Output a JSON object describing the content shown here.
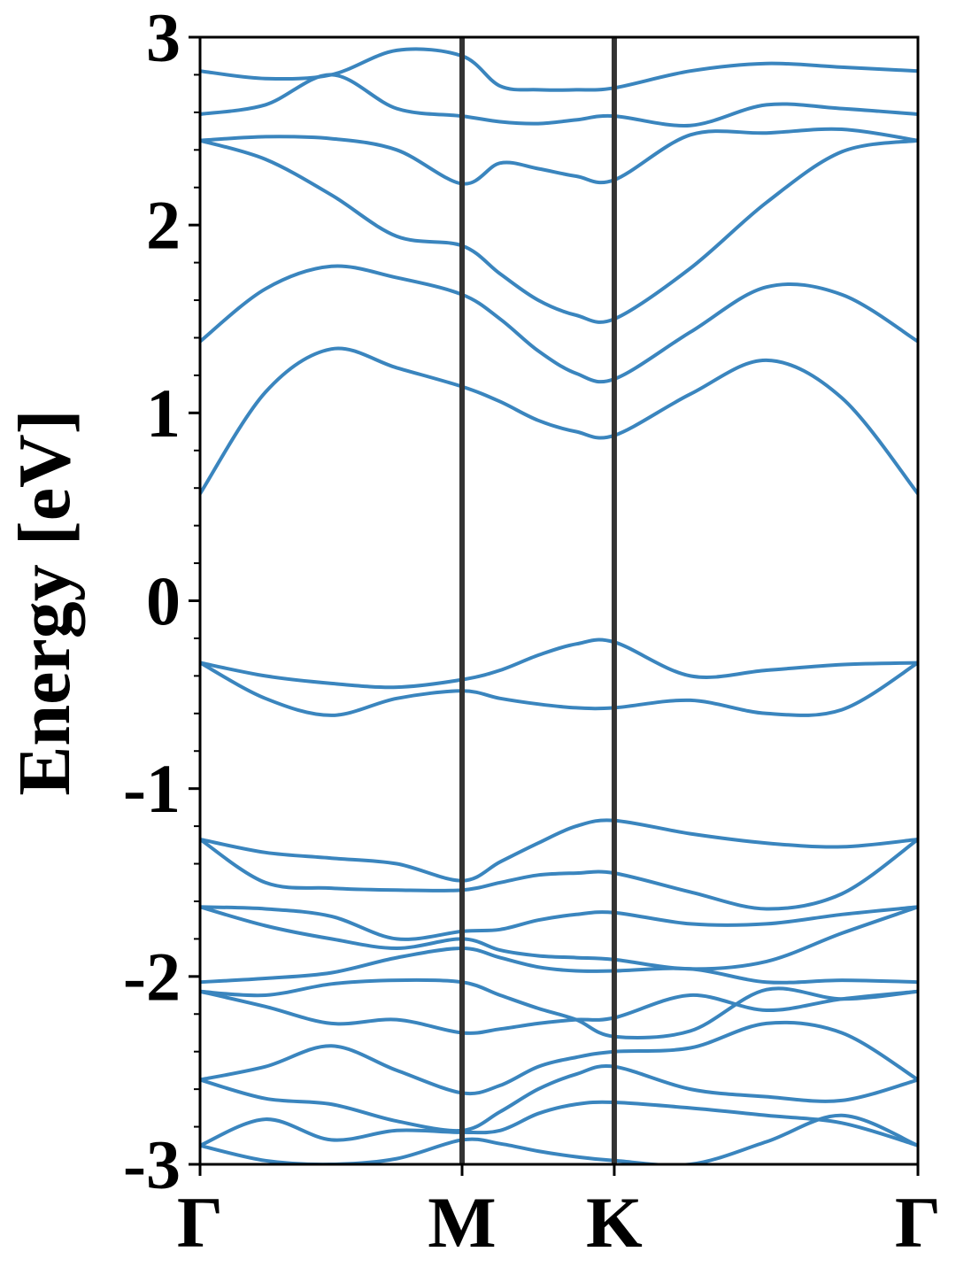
{
  "chart_data": {
    "type": "line",
    "title": "",
    "xlabel": "",
    "ylabel": "Energy [eV]",
    "ylim": [
      -3,
      3
    ],
    "xlim": [
      0,
      1
    ],
    "grid": false,
    "colors": {
      "band": "#3a85be",
      "kline": "#333333",
      "axis": "#000000"
    },
    "high_symmetry_points": [
      {
        "label": "Γ",
        "x": 0.0
      },
      {
        "label": "M",
        "x": 0.365
      },
      {
        "label": "K",
        "x": 0.577
      },
      {
        "label": "Γ",
        "x": 1.0
      }
    ],
    "y_ticks": [
      {
        "value": 3,
        "label": "3"
      },
      {
        "value": 2,
        "label": "2"
      },
      {
        "value": 1,
        "label": "1"
      },
      {
        "value": 0,
        "label": "0"
      },
      {
        "value": -1,
        "label": "-1"
      },
      {
        "value": -2,
        "label": "-2"
      },
      {
        "value": -3,
        "label": "-3"
      }
    ],
    "y_minor_step": 0.2,
    "x_samples": [
      0,
      0.091,
      0.183,
      0.274,
      0.365,
      0.418,
      0.471,
      0.524,
      0.577,
      0.683,
      0.789,
      0.894,
      1.0
    ],
    "bands": [
      {
        "values": [
          2.82,
          2.78,
          2.8,
          2.93,
          2.9,
          2.74,
          2.72,
          2.72,
          2.73,
          2.82,
          2.86,
          2.84,
          2.82
        ]
      },
      {
        "values": [
          2.59,
          2.64,
          2.8,
          2.62,
          2.58,
          2.55,
          2.54,
          2.56,
          2.58,
          2.53,
          2.64,
          2.62,
          2.59
        ]
      },
      {
        "values": [
          2.45,
          2.47,
          2.46,
          2.4,
          2.22,
          2.33,
          2.3,
          2.26,
          2.24,
          2.48,
          2.49,
          2.51,
          2.45
        ]
      },
      {
        "values": [
          2.45,
          2.35,
          2.16,
          1.94,
          1.89,
          1.74,
          1.6,
          1.52,
          1.5,
          1.77,
          2.12,
          2.39,
          2.45
        ]
      },
      {
        "values": [
          1.38,
          1.66,
          1.78,
          1.72,
          1.63,
          1.5,
          1.33,
          1.21,
          1.18,
          1.43,
          1.67,
          1.63,
          1.38
        ]
      },
      {
        "values": [
          0.57,
          1.11,
          1.34,
          1.24,
          1.14,
          1.06,
          0.96,
          0.9,
          0.88,
          1.1,
          1.28,
          1.08,
          0.57
        ]
      },
      {
        "values": [
          -0.33,
          -0.4,
          -0.44,
          -0.46,
          -0.42,
          -0.37,
          -0.29,
          -0.23,
          -0.22,
          -0.4,
          -0.37,
          -0.34,
          -0.33
        ]
      },
      {
        "values": [
          -0.33,
          -0.52,
          -0.61,
          -0.52,
          -0.48,
          -0.52,
          -0.55,
          -0.57,
          -0.57,
          -0.53,
          -0.6,
          -0.58,
          -0.33
        ]
      },
      {
        "values": [
          -1.27,
          -1.34,
          -1.37,
          -1.4,
          -1.49,
          -1.39,
          -1.29,
          -1.2,
          -1.17,
          -1.24,
          -1.29,
          -1.31,
          -1.27
        ]
      },
      {
        "values": [
          -1.27,
          -1.5,
          -1.53,
          -1.54,
          -1.54,
          -1.5,
          -1.46,
          -1.45,
          -1.45,
          -1.55,
          -1.64,
          -1.56,
          -1.27
        ]
      },
      {
        "values": [
          -1.63,
          -1.64,
          -1.68,
          -1.8,
          -1.76,
          -1.75,
          -1.7,
          -1.67,
          -1.66,
          -1.72,
          -1.72,
          -1.67,
          -1.63
        ]
      },
      {
        "values": [
          -1.63,
          -1.73,
          -1.8,
          -1.85,
          -1.8,
          -1.86,
          -1.89,
          -1.9,
          -1.91,
          -1.96,
          -1.92,
          -1.77,
          -1.63
        ]
      },
      {
        "values": [
          -2.03,
          -2.01,
          -1.98,
          -1.9,
          -1.85,
          -1.9,
          -1.95,
          -1.97,
          -1.97,
          -1.96,
          -2.03,
          -2.02,
          -2.03
        ]
      },
      {
        "values": [
          -2.08,
          -2.1,
          -2.04,
          -2.02,
          -2.03,
          -2.1,
          -2.17,
          -2.23,
          -2.32,
          -2.29,
          -2.07,
          -2.12,
          -2.08
        ]
      },
      {
        "values": [
          -2.08,
          -2.16,
          -2.25,
          -2.23,
          -2.3,
          -2.28,
          -2.25,
          -2.23,
          -2.22,
          -2.1,
          -2.18,
          -2.12,
          -2.08
        ]
      },
      {
        "values": [
          -2.55,
          -2.48,
          -2.37,
          -2.5,
          -2.62,
          -2.58,
          -2.48,
          -2.43,
          -2.4,
          -2.38,
          -2.25,
          -2.3,
          -2.55
        ]
      },
      {
        "values": [
          -2.55,
          -2.65,
          -2.68,
          -2.77,
          -2.82,
          -2.72,
          -2.6,
          -2.52,
          -2.48,
          -2.6,
          -2.64,
          -2.66,
          -2.55
        ]
      },
      {
        "values": [
          -2.9,
          -2.76,
          -2.87,
          -2.82,
          -2.83,
          -2.82,
          -2.73,
          -2.68,
          -2.67,
          -2.7,
          -2.74,
          -2.78,
          -2.9
        ]
      },
      {
        "values": [
          -2.9,
          -2.98,
          -3.0,
          -2.97,
          -2.87,
          -2.89,
          -2.93,
          -2.96,
          -2.98,
          -3.0,
          -2.88,
          -2.74,
          -2.9
        ]
      }
    ]
  }
}
